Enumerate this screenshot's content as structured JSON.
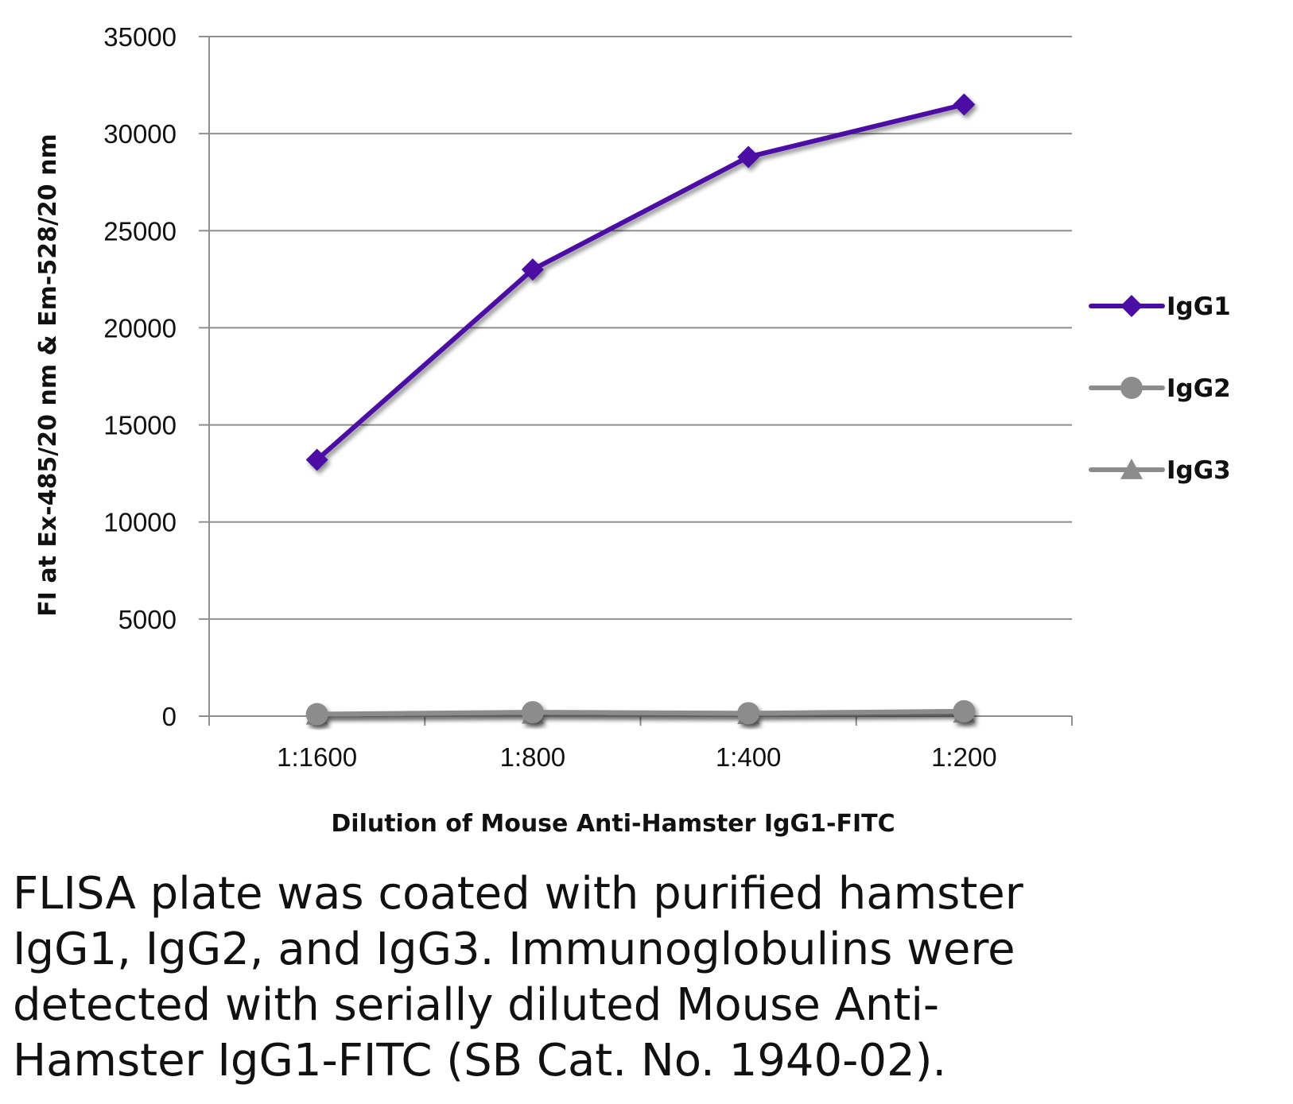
{
  "chart_data": {
    "type": "line",
    "title": "",
    "xlabel": "Dilution of Mouse Anti-Hamster IgG1-FITC",
    "ylabel": "FI at Ex-485/20 nm & Em-528/20 nm",
    "categories": [
      "1:1600",
      "1:800",
      "1:400",
      "1:200"
    ],
    "ylim": [
      0,
      35000
    ],
    "yticks": [
      0,
      5000,
      10000,
      15000,
      20000,
      25000,
      30000,
      35000
    ],
    "grid": true,
    "legend": "right",
    "series": [
      {
        "name": "IgG1",
        "values": [
          13200,
          23000,
          28800,
          31500
        ],
        "color": "#4B0DA3",
        "marker": "diamond"
      },
      {
        "name": "IgG2",
        "values": [
          100,
          200,
          150,
          250
        ],
        "color": "#8C8C8C",
        "marker": "circle"
      },
      {
        "name": "IgG3",
        "values": [
          50,
          100,
          80,
          150
        ],
        "color": "#8C8C8C",
        "marker": "triangle"
      }
    ]
  },
  "caption": [
    "FLISA plate was coated with purified hamster",
    "IgG1, IgG2, and IgG3.  Immunoglobulins were",
    "detected with serially diluted Mouse Anti-",
    "Hamster IgG1-FITC (SB Cat. No. 1940-02)."
  ]
}
